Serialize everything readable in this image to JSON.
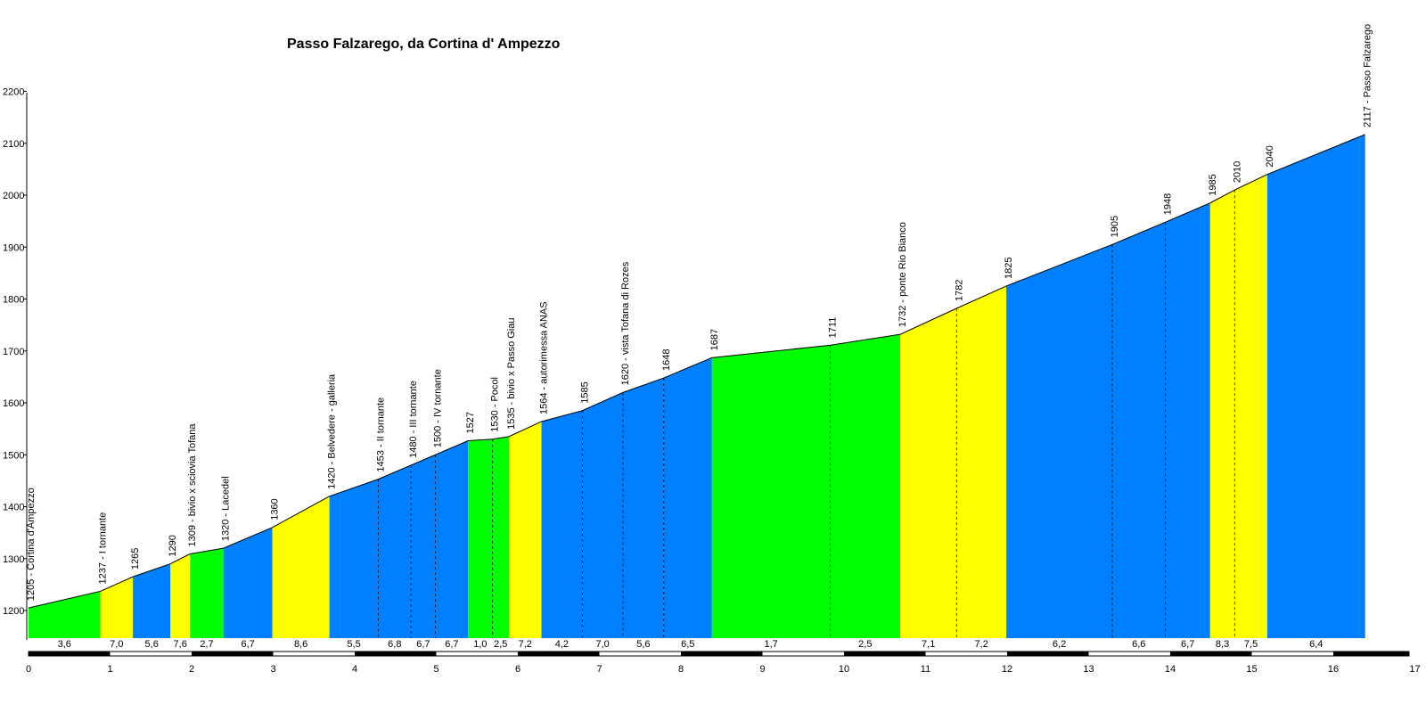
{
  "chart_data": {
    "type": "area",
    "title": "Passo Falzarego, da Cortina d' Ampezzo",
    "xlabel": "",
    "ylabel": "",
    "xlim": [
      0,
      17
    ],
    "ylim": [
      1140,
      2200
    ],
    "x_ticks": [
      "0",
      "1",
      "2",
      "3",
      "4",
      "5",
      "6",
      "7",
      "8",
      "9",
      "10",
      "11",
      "12",
      "13",
      "14",
      "15",
      "16",
      "17"
    ],
    "y_ticks": [
      "1200",
      "1300",
      "1400",
      "1500",
      "1600",
      "1700",
      "1800",
      "1900",
      "2000",
      "2100",
      "2200"
    ],
    "grid": false,
    "colors": {
      "green": "#00ff00",
      "yellow": "#ffff00",
      "blue": "#0080ff"
    },
    "points": [
      {
        "x": 0.0,
        "y": 1205,
        "label": "1205 - Cortina d'Ampezzo"
      },
      {
        "x": 0.88,
        "y": 1237,
        "label": "1237 - I tornante"
      },
      {
        "x": 1.28,
        "y": 1265,
        "label": "1265"
      },
      {
        "x": 1.74,
        "y": 1290,
        "label": "1290"
      },
      {
        "x": 1.98,
        "y": 1309,
        "label": "1309 - bivio x sciovia Tofana"
      },
      {
        "x": 2.39,
        "y": 1320,
        "label": "1320 - Lacedel"
      },
      {
        "x": 2.99,
        "y": 1360,
        "label": "1360"
      },
      {
        "x": 3.69,
        "y": 1420,
        "label": "1420 - Belvedere - galleria"
      },
      {
        "x": 4.29,
        "y": 1453,
        "label": "1453 - II tornante"
      },
      {
        "x": 4.69,
        "y": 1480,
        "label": "1480 - III tornante"
      },
      {
        "x": 4.99,
        "y": 1500,
        "label": "1500 - IV tornante"
      },
      {
        "x": 5.39,
        "y": 1527,
        "label": "1527"
      },
      {
        "x": 5.69,
        "y": 1530,
        "label": "1530 - Pocol"
      },
      {
        "x": 5.89,
        "y": 1535,
        "label": "1535 - bivio x Passo Giau"
      },
      {
        "x": 6.29,
        "y": 1564,
        "label": "1564 - autorimessa ANAS"
      },
      {
        "x": 6.79,
        "y": 1585,
        "label": "1585"
      },
      {
        "x": 7.29,
        "y": 1620,
        "label": "1620 - vista Tofana di Rozes"
      },
      {
        "x": 7.79,
        "y": 1648,
        "label": "1648"
      },
      {
        "x": 8.38,
        "y": 1687,
        "label": "1687"
      },
      {
        "x": 9.83,
        "y": 1711,
        "label": "1711"
      },
      {
        "x": 10.69,
        "y": 1732,
        "label": "1732 - ponte Rio Bianco"
      },
      {
        "x": 11.38,
        "y": 1782,
        "label": "1782"
      },
      {
        "x": 11.99,
        "y": 1825,
        "label": "1825"
      },
      {
        "x": 13.29,
        "y": 1905,
        "label": "1905"
      },
      {
        "x": 13.94,
        "y": 1948,
        "label": "1948"
      },
      {
        "x": 14.49,
        "y": 1985,
        "label": "1985"
      },
      {
        "x": 14.79,
        "y": 2010,
        "label": "2010"
      },
      {
        "x": 15.19,
        "y": 2040,
        "label": "2040"
      },
      {
        "x": 16.39,
        "y": 2117,
        "label": "2117 - Passo Falzarego"
      }
    ],
    "segments": [
      {
        "gradient": "3,6",
        "color": "green"
      },
      {
        "gradient": "7,0",
        "color": "yellow"
      },
      {
        "gradient": "5,6",
        "color": "blue"
      },
      {
        "gradient": "7,6",
        "color": "yellow"
      },
      {
        "gradient": "2,7",
        "color": "green"
      },
      {
        "gradient": "6,7",
        "color": "blue"
      },
      {
        "gradient": "8,6",
        "color": "yellow"
      },
      {
        "gradient": "5,5",
        "color": "blue"
      },
      {
        "gradient": "6,8",
        "color": "blue"
      },
      {
        "gradient": "6,7",
        "color": "blue"
      },
      {
        "gradient": "6,7",
        "color": "blue"
      },
      {
        "gradient": "1,0",
        "color": "green"
      },
      {
        "gradient": "2,5",
        "color": "green"
      },
      {
        "gradient": "7,2",
        "color": "yellow"
      },
      {
        "gradient": "4,2",
        "color": "blue"
      },
      {
        "gradient": "7,0",
        "color": "blue"
      },
      {
        "gradient": "5,6",
        "color": "blue"
      },
      {
        "gradient": "6,5",
        "color": "blue"
      },
      {
        "gradient": "1,7",
        "color": "green"
      },
      {
        "gradient": "2,5",
        "color": "green"
      },
      {
        "gradient": "7,1",
        "color": "yellow"
      },
      {
        "gradient": "7,2",
        "color": "yellow"
      },
      {
        "gradient": "6,2",
        "color": "blue"
      },
      {
        "gradient": "6,6",
        "color": "blue"
      },
      {
        "gradient": "6,7",
        "color": "blue"
      },
      {
        "gradient": "8,3",
        "color": "yellow"
      },
      {
        "gradient": "7,5",
        "color": "yellow"
      },
      {
        "gradient": "6,4",
        "color": "blue"
      }
    ]
  }
}
